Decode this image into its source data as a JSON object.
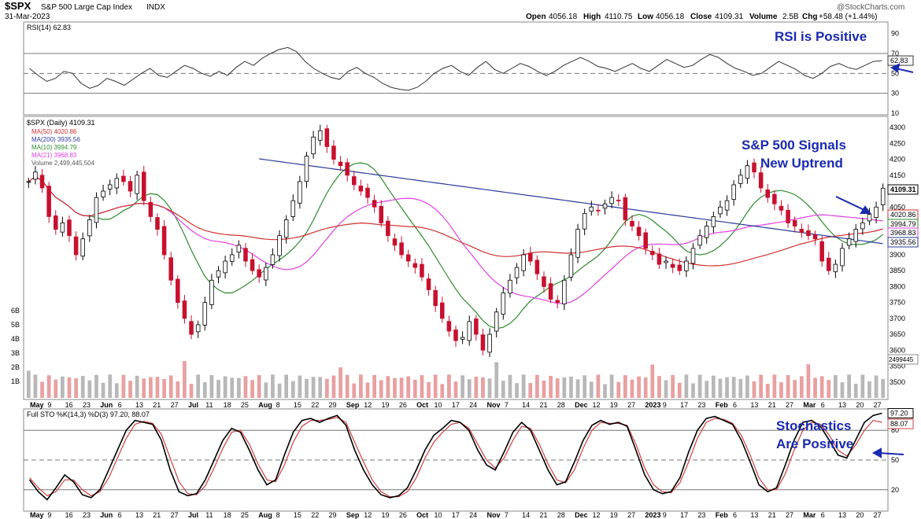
{
  "header": {
    "symbol": "$SPX",
    "name": "S&P 500 Large Cap Index",
    "exchange": "INDX",
    "date": "31-Mar-2023",
    "watermark": "@StockCharts.com",
    "open_label": "Open",
    "open": "4056.18",
    "high_label": "High",
    "high": "4110.75",
    "low_label": "Low",
    "low": "4056.18",
    "close_label": "Close",
    "close": "4109.31",
    "volume_label": "Volume",
    "volume": "2.5B",
    "chg_label": "Chg",
    "chg": "+58.48 (+1.44%)"
  },
  "annotations": {
    "rsi": "RSI is Positive",
    "price_line1": "S&P 500 Signals",
    "price_line2": "New Uptrend",
    "sto_line1": "Stochastics",
    "sto_line2": "Are Positive"
  },
  "colors": {
    "up": "#000000",
    "down": "#c8102e",
    "ma50": "#d03030",
    "ma200": "#2a3a9a",
    "ma10": "#2e8b2e",
    "ma21": "#e040e0",
    "volume_up": "#b8b8b8",
    "volume_down": "#e8a0a0",
    "annotation": "#1a2ab0",
    "sto_k": "#000000",
    "sto_d": "#d04040"
  },
  "chart_data": [
    {
      "type": "line",
      "panel": "rsi",
      "label": "RSI(14) 62.83",
      "last_value": "62.83",
      "ylim": [
        10,
        100
      ],
      "yticks": [
        10,
        30,
        50,
        70,
        90
      ],
      "reference_lines": [
        30,
        50,
        70
      ],
      "values": [
        55,
        48,
        42,
        45,
        52,
        50,
        40,
        35,
        38,
        45,
        42,
        38,
        44,
        50,
        55,
        48,
        46,
        52,
        58,
        55,
        50,
        47,
        52,
        48,
        56,
        62,
        58,
        65,
        70,
        74,
        76,
        72,
        62,
        55,
        50,
        46,
        44,
        52,
        56,
        50,
        46,
        40,
        36,
        34,
        33,
        36,
        42,
        50,
        55,
        58,
        52,
        48,
        56,
        62,
        54,
        50,
        55,
        60,
        57,
        52,
        48,
        52,
        58,
        62,
        66,
        62,
        57,
        55,
        52,
        56,
        60,
        55,
        52,
        58,
        64,
        60,
        56,
        58,
        64,
        69,
        66,
        60,
        55,
        52,
        48,
        50,
        56,
        62,
        58,
        54,
        48,
        45,
        50,
        57,
        60,
        56,
        54,
        58,
        62,
        62.83
      ]
    },
    {
      "type": "candlestick",
      "panel": "price",
      "label": "$SPX (Daily) 4109.31",
      "ylim": [
        3450,
        4330
      ],
      "yticks": [
        3500,
        3550,
        3600,
        3650,
        3700,
        3750,
        3800,
        3850,
        3900,
        3950,
        4000,
        4050,
        4100,
        4150,
        4200,
        4250,
        4300
      ],
      "price_tags": [
        "4109.31",
        "4020.86",
        "3994.79",
        "3968.83",
        "3935.56"
      ],
      "legend": [
        "MA(50) 4020.86",
        "MA(200) 3935.56",
        "MA(10) 3994.79",
        "MA(21) 3968.83",
        "Volume 2,499,445,504"
      ],
      "x_labels": [
        "May",
        "9",
        "16",
        "23",
        "Jun",
        "6",
        "13",
        "21",
        "27",
        "Jul",
        "11",
        "18",
        "25",
        "Aug",
        "8",
        "15",
        "22",
        "29",
        "Sep",
        "12",
        "19",
        "26",
        "Oct",
        "10",
        "17",
        "24",
        "Nov",
        "7",
        "14",
        "21",
        "28",
        "Dec",
        "12",
        "19",
        "27",
        "2023",
        "9",
        "17",
        "23",
        "Feb",
        "6",
        "13",
        "21",
        "27",
        "Mar",
        "6",
        "13",
        "20",
        "27"
      ],
      "closes": [
        4130,
        4160,
        4110,
        4020,
        3980,
        4000,
        3960,
        3900,
        3950,
        4010,
        4080,
        4100,
        4120,
        4140,
        4130,
        4100,
        4150,
        4070,
        4020,
        3980,
        3900,
        3820,
        3750,
        3700,
        3650,
        3680,
        3750,
        3820,
        3850,
        3880,
        3900,
        3930,
        3880,
        3850,
        3830,
        3860,
        3900,
        3960,
        4010,
        4070,
        4130,
        4210,
        4270,
        4290,
        4240,
        4200,
        4180,
        4150,
        4120,
        4100,
        4080,
        4050,
        4000,
        3960,
        3930,
        3900,
        3880,
        3860,
        3830,
        3790,
        3740,
        3700,
        3660,
        3630,
        3640,
        3690,
        3650,
        3600,
        3650,
        3720,
        3780,
        3820,
        3860,
        3900,
        3880,
        3840,
        3800,
        3760,
        3750,
        3820,
        3900,
        3980,
        4030,
        4050,
        4040,
        4060,
        4080,
        4070,
        4010,
        3990,
        3960,
        3920,
        3900,
        3870,
        3880,
        3860,
        3850,
        3880,
        3920,
        3960,
        3990,
        4020,
        4050,
        4070,
        4120,
        4150,
        4180,
        4160,
        4110,
        4080,
        4060,
        4040,
        4000,
        3990,
        3970,
        3960,
        3950,
        3880,
        3850,
        3870,
        3920,
        3950,
        3980,
        4000,
        4027,
        4050,
        4109.31
      ],
      "volume_label_value": "2499445",
      "volume_axis": [
        "6B",
        "5B",
        "4B",
        "3B",
        "2B",
        "1B"
      ]
    },
    {
      "type": "line",
      "panel": "stochastic",
      "label": "Full STO %K(14,3) %D(3) 97.20, 88.07",
      "k_last": "97.20",
      "d_last": "88.07",
      "ylim": [
        0,
        100
      ],
      "yticks": [
        20,
        50,
        80
      ],
      "reference_lines": [
        20,
        50,
        80
      ],
      "k": [
        30,
        18,
        10,
        22,
        35,
        28,
        15,
        12,
        20,
        40,
        60,
        80,
        90,
        88,
        86,
        70,
        40,
        18,
        14,
        16,
        30,
        50,
        70,
        82,
        78,
        60,
        40,
        25,
        30,
        55,
        78,
        90,
        92,
        88,
        92,
        95,
        85,
        60,
        40,
        25,
        15,
        12,
        14,
        22,
        40,
        60,
        75,
        82,
        90,
        88,
        80,
        60,
        45,
        40,
        58,
        78,
        88,
        80,
        60,
        40,
        25,
        28,
        48,
        70,
        85,
        90,
        86,
        88,
        84,
        60,
        35,
        20,
        16,
        18,
        32,
        58,
        80,
        92,
        94,
        90,
        86,
        70,
        48,
        25,
        18,
        22,
        45,
        70,
        88,
        90,
        84,
        70,
        55,
        52,
        70,
        88,
        95,
        97.2
      ],
      "d": [
        32,
        22,
        14,
        18,
        30,
        30,
        20,
        14,
        18,
        32,
        52,
        72,
        86,
        89,
        87,
        76,
        52,
        28,
        16,
        15,
        24,
        42,
        62,
        78,
        80,
        66,
        46,
        30,
        28,
        45,
        68,
        84,
        90,
        90,
        91,
        93,
        88,
        68,
        48,
        30,
        18,
        13,
        13,
        18,
        32,
        52,
        68,
        78,
        86,
        88,
        82,
        66,
        50,
        42,
        52,
        70,
        84,
        82,
        66,
        46,
        30,
        27,
        40,
        62,
        80,
        88,
        87,
        87,
        85,
        66,
        42,
        25,
        18,
        17,
        27,
        48,
        72,
        88,
        92,
        91,
        87,
        75,
        55,
        32,
        20,
        20,
        36,
        60,
        80,
        88,
        86,
        75,
        60,
        54,
        65,
        80,
        90,
        88.07
      ],
      "x_labels": [
        "May",
        "9",
        "16",
        "23",
        "Jun",
        "6",
        "13",
        "21",
        "27",
        "Jul",
        "11",
        "18",
        "25",
        "Aug",
        "8",
        "15",
        "22",
        "29",
        "Sep",
        "12",
        "19",
        "26",
        "Oct",
        "10",
        "17",
        "24",
        "Nov",
        "7",
        "14",
        "21",
        "28",
        "Dec",
        "12",
        "19",
        "27",
        "2023",
        "9",
        "17",
        "23",
        "Feb",
        "6",
        "13",
        "21",
        "27",
        "Mar",
        "6",
        "13",
        "20",
        "27"
      ]
    }
  ]
}
